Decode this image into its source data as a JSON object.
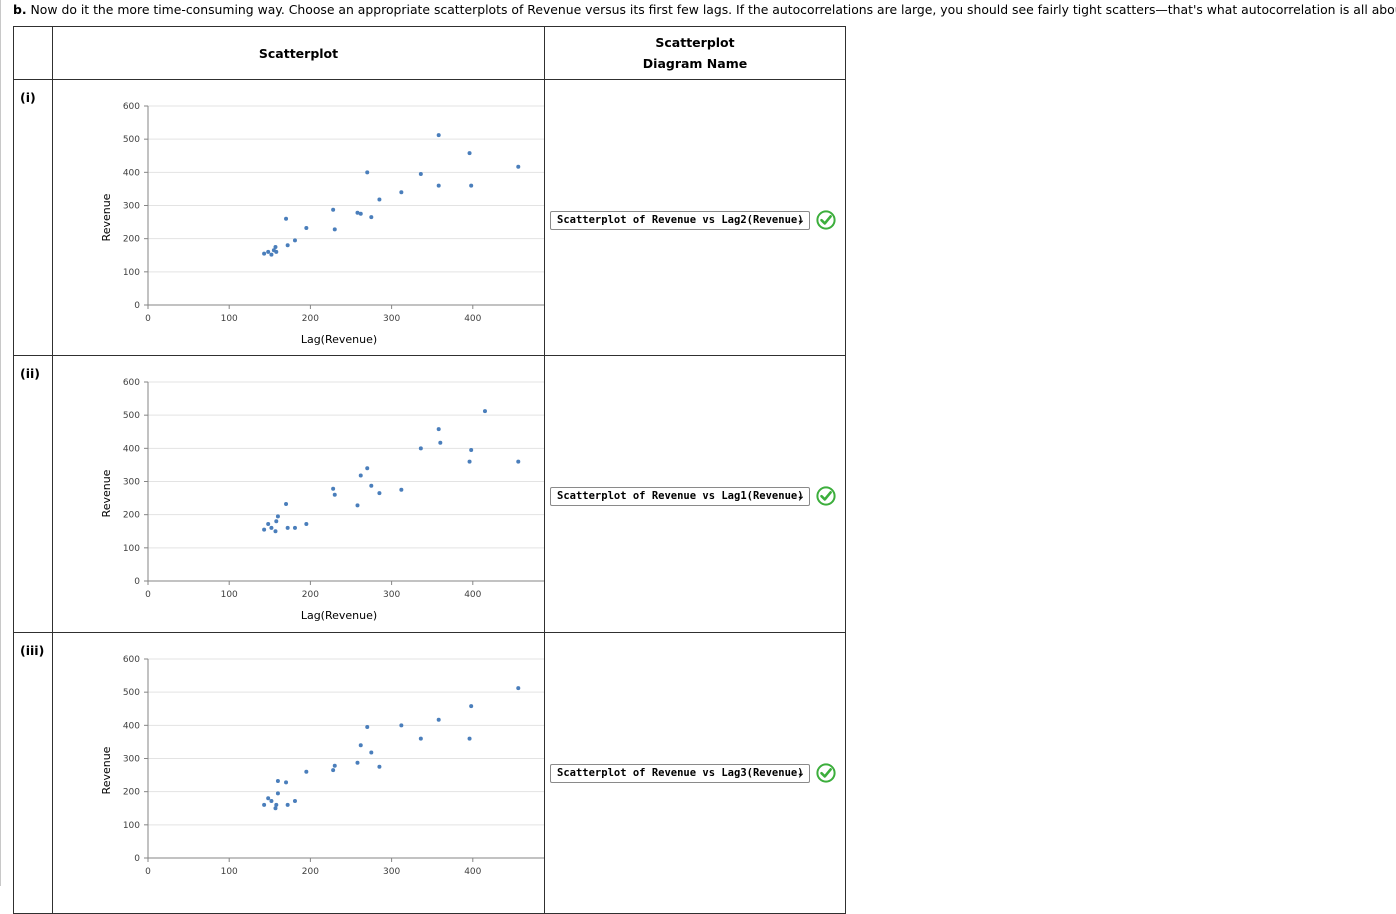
{
  "instruction": {
    "prefix": "b.",
    "text": "Now do it the more time-consuming way. Choose an appropriate scatterplots of Revenue versus its first few lags. If the autocorrelations are large, you should see fairly tight scatters—that's what autocorrelation is all about."
  },
  "table": {
    "col_scatterplot": "Scatterplot",
    "col_diagram_line1": "Scatterplot",
    "col_diagram_line2": "Diagram Name"
  },
  "rows": [
    {
      "label": "(i)",
      "selected": "Scatterplot of Revenue vs Lag2(Revenue)",
      "status": "correct"
    },
    {
      "label": "(ii)",
      "selected": "Scatterplot of Revenue vs Lag1(Revenue)",
      "status": "correct"
    },
    {
      "label": "(iii)",
      "selected": "Scatterplot of Revenue vs Lag3(Revenue)",
      "status": "correct"
    }
  ],
  "colors": {
    "marker": "#4a7ebb",
    "check": "#3cae3c",
    "grid": "#e3e3e3"
  },
  "chart_data": [
    {
      "type": "scatter",
      "ylabel": "Revenue",
      "xlabel": "Lag(Revenue)",
      "xlim": [
        0,
        500
      ],
      "ylim": [
        0,
        600
      ],
      "xticks": [
        0,
        100,
        200,
        300,
        400,
        500
      ],
      "yticks": [
        0,
        100,
        200,
        300,
        400,
        500,
        600
      ],
      "points": [
        [
          143,
          155
        ],
        [
          148,
          160
        ],
        [
          152,
          152
        ],
        [
          155,
          165
        ],
        [
          157,
          175
        ],
        [
          158,
          160
        ],
        [
          170,
          260
        ],
        [
          172,
          180
        ],
        [
          181,
          195
        ],
        [
          195,
          232
        ],
        [
          228,
          287
        ],
        [
          230,
          228
        ],
        [
          258,
          278
        ],
        [
          262,
          275
        ],
        [
          270,
          400
        ],
        [
          275,
          265
        ],
        [
          285,
          318
        ],
        [
          312,
          340
        ],
        [
          336,
          395
        ],
        [
          358,
          512
        ],
        [
          358,
          360
        ],
        [
          396,
          458
        ],
        [
          398,
          360
        ],
        [
          456,
          417
        ]
      ]
    },
    {
      "type": "scatter",
      "ylabel": "Revenue",
      "xlabel": "Lag(Revenue)",
      "xlim": [
        0,
        500
      ],
      "ylim": [
        0,
        600
      ],
      "xticks": [
        0,
        100,
        200,
        300,
        400,
        500
      ],
      "yticks": [
        0,
        100,
        200,
        300,
        400,
        500,
        600
      ],
      "points": [
        [
          143,
          155
        ],
        [
          148,
          172
        ],
        [
          152,
          160
        ],
        [
          157,
          150
        ],
        [
          158,
          180
        ],
        [
          160,
          195
        ],
        [
          170,
          232
        ],
        [
          172,
          160
        ],
        [
          181,
          160
        ],
        [
          195,
          172
        ],
        [
          228,
          278
        ],
        [
          230,
          260
        ],
        [
          258,
          228
        ],
        [
          262,
          318
        ],
        [
          270,
          340
        ],
        [
          275,
          287
        ],
        [
          285,
          265
        ],
        [
          312,
          275
        ],
        [
          336,
          400
        ],
        [
          358,
          458
        ],
        [
          360,
          417
        ],
        [
          396,
          360
        ],
        [
          398,
          395
        ],
        [
          415,
          512
        ],
        [
          456,
          360
        ]
      ]
    },
    {
      "type": "scatter",
      "ylabel": "Revenue",
      "xlabel": "",
      "xlim": [
        0,
        500
      ],
      "ylim": [
        0,
        600
      ],
      "xticks": [
        0,
        100,
        200,
        300,
        400,
        500
      ],
      "yticks": [
        0,
        100,
        200,
        300,
        400,
        500,
        600
      ],
      "points": [
        [
          143,
          160
        ],
        [
          148,
          180
        ],
        [
          152,
          172
        ],
        [
          157,
          150
        ],
        [
          158,
          160
        ],
        [
          160,
          195
        ],
        [
          160,
          232
        ],
        [
          170,
          228
        ],
        [
          172,
          160
        ],
        [
          181,
          172
        ],
        [
          195,
          260
        ],
        [
          228,
          265
        ],
        [
          230,
          278
        ],
        [
          258,
          287
        ],
        [
          262,
          340
        ],
        [
          270,
          395
        ],
        [
          275,
          318
        ],
        [
          285,
          275
        ],
        [
          312,
          400
        ],
        [
          336,
          360
        ],
        [
          358,
          417
        ],
        [
          396,
          360
        ],
        [
          398,
          458
        ],
        [
          456,
          512
        ]
      ]
    }
  ]
}
